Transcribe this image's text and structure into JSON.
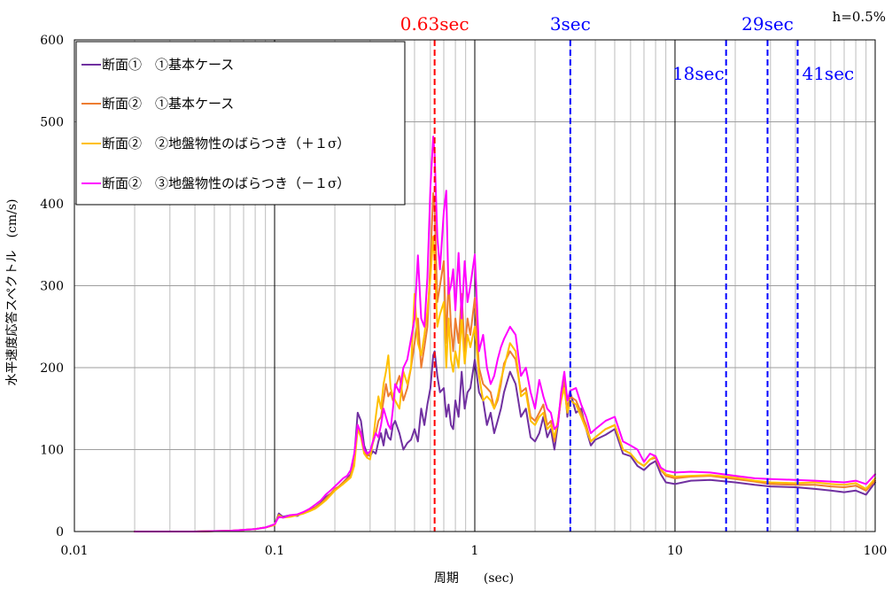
{
  "chart_data": {
    "type": "line",
    "xscale": "log",
    "xlim": [
      0.01,
      100
    ],
    "ylim": [
      0,
      600
    ],
    "xticks": [
      0.01,
      0.1,
      1,
      10,
      100
    ],
    "xtick_labels": [
      "0.01",
      "0.1",
      "1",
      "10",
      "100"
    ],
    "yticks": [
      0,
      100,
      200,
      300,
      400,
      500,
      600
    ],
    "ytick_labels": [
      "0",
      "100",
      "200",
      "300",
      "400",
      "500",
      "600"
    ],
    "xlabel": "周期　　(sec)",
    "ylabel": "水平速度応答スペクトル　(cm/s)",
    "damping_label": "h=0.5%",
    "grid": true,
    "legend_position": "top-left",
    "x": [
      0.02,
      0.03,
      0.04,
      0.05,
      0.06,
      0.07,
      0.08,
      0.09,
      0.1,
      0.105,
      0.11,
      0.12,
      0.13,
      0.14,
      0.15,
      0.16,
      0.17,
      0.18,
      0.19,
      0.2,
      0.21,
      0.22,
      0.23,
      0.24,
      0.25,
      0.26,
      0.27,
      0.28,
      0.29,
      0.3,
      0.31,
      0.32,
      0.33,
      0.34,
      0.35,
      0.36,
      0.37,
      0.38,
      0.39,
      0.4,
      0.42,
      0.44,
      0.46,
      0.48,
      0.5,
      0.52,
      0.54,
      0.56,
      0.58,
      0.6,
      0.62,
      0.63,
      0.65,
      0.67,
      0.7,
      0.72,
      0.74,
      0.76,
      0.78,
      0.8,
      0.83,
      0.86,
      0.89,
      0.92,
      0.95,
      1.0,
      1.05,
      1.1,
      1.15,
      1.2,
      1.25,
      1.3,
      1.35,
      1.4,
      1.5,
      1.6,
      1.7,
      1.8,
      1.9,
      2.0,
      2.1,
      2.2,
      2.3,
      2.4,
      2.5,
      2.6,
      2.7,
      2.8,
      2.9,
      3.0,
      3.2,
      3.4,
      3.6,
      3.8,
      4.0,
      4.5,
      5.0,
      5.5,
      6.0,
      6.5,
      7.0,
      7.5,
      8.0,
      8.5,
      9.0,
      10,
      12,
      15,
      20,
      25,
      30,
      40,
      50,
      60,
      70,
      80,
      90,
      100
    ],
    "series": [
      {
        "name": "断面①　①基本ケース",
        "color": "#7030A0",
        "values": [
          0,
          0,
          0,
          0.5,
          1,
          2,
          3,
          5,
          8,
          22,
          18,
          20,
          19,
          24,
          27,
          30,
          35,
          42,
          46,
          50,
          55,
          60,
          65,
          70,
          90,
          145,
          135,
          105,
          95,
          92,
          98,
          95,
          110,
          120,
          105,
          125,
          115,
          112,
          130,
          135,
          120,
          100,
          108,
          112,
          125,
          110,
          150,
          130,
          155,
          175,
          215,
          220,
          190,
          170,
          175,
          140,
          155,
          130,
          125,
          160,
          140,
          195,
          150,
          170,
          175,
          210,
          170,
          160,
          130,
          145,
          120,
          135,
          150,
          170,
          195,
          180,
          140,
          150,
          115,
          110,
          120,
          140,
          115,
          125,
          100,
          130,
          165,
          185,
          140,
          170,
          145,
          150,
          125,
          105,
          112,
          118,
          125,
          95,
          92,
          80,
          75,
          82,
          86,
          70,
          60,
          58,
          62,
          63,
          60,
          57,
          55,
          54,
          52,
          50,
          48,
          50,
          45,
          60
        ]
      },
      {
        "name": "断面②　①基本ケース",
        "color": "#ED7D31",
        "values": [
          0,
          0,
          0,
          0.5,
          1,
          2,
          3,
          5,
          8,
          20,
          17,
          19,
          20,
          23,
          26,
          30,
          34,
          40,
          46,
          52,
          55,
          60,
          64,
          68,
          85,
          130,
          120,
          100,
          92,
          95,
          108,
          120,
          135,
          140,
          160,
          180,
          165,
          170,
          160,
          175,
          190,
          160,
          175,
          200,
          230,
          260,
          200,
          225,
          250,
          330,
          413,
          395,
          280,
          300,
          330,
          230,
          310,
          250,
          220,
          260,
          230,
          290,
          220,
          260,
          240,
          285,
          200,
          180,
          175,
          170,
          150,
          160,
          180,
          205,
          220,
          210,
          170,
          175,
          140,
          135,
          145,
          155,
          130,
          135,
          110,
          135,
          165,
          185,
          150,
          165,
          160,
          145,
          130,
          110,
          115,
          125,
          130,
          100,
          95,
          85,
          80,
          88,
          90,
          75,
          68,
          65,
          67,
          68,
          64,
          61,
          58,
          57,
          57,
          55,
          54,
          56,
          50,
          62
        ]
      },
      {
        "name": "断面②　②地盤物性のばらつき（＋１σ）",
        "color": "#FFC000",
        "values": [
          0,
          0,
          0,
          0.5,
          1,
          2,
          3,
          5,
          8,
          20,
          17,
          18,
          20,
          22,
          25,
          28,
          33,
          38,
          44,
          50,
          54,
          58,
          62,
          66,
          80,
          125,
          115,
          95,
          90,
          88,
          110,
          140,
          165,
          150,
          180,
          195,
          215,
          175,
          165,
          160,
          150,
          195,
          180,
          200,
          290,
          230,
          215,
          240,
          270,
          310,
          360,
          330,
          250,
          265,
          280,
          200,
          260,
          210,
          195,
          220,
          200,
          260,
          205,
          240,
          225,
          250,
          190,
          160,
          165,
          160,
          150,
          165,
          185,
          200,
          230,
          220,
          165,
          170,
          135,
          130,
          140,
          145,
          125,
          130,
          115,
          135,
          160,
          175,
          145,
          160,
          155,
          140,
          125,
          110,
          115,
          125,
          130,
          100,
          95,
          85,
          80,
          88,
          92,
          76,
          70,
          67,
          68,
          69,
          66,
          62,
          60,
          59,
          60,
          58,
          57,
          59,
          52,
          65
        ]
      },
      {
        "name": "断面②　③地盤物性のばらつき（－１σ）",
        "color": "#FF00FF",
        "values": [
          0,
          0,
          0,
          0.5,
          1,
          2,
          3,
          5,
          9,
          18,
          17,
          20,
          21,
          24,
          28,
          33,
          38,
          45,
          50,
          55,
          60,
          65,
          68,
          75,
          95,
          130,
          120,
          100,
          95,
          98,
          110,
          120,
          115,
          130,
          150,
          140,
          130,
          125,
          150,
          180,
          170,
          200,
          210,
          235,
          260,
          337,
          260,
          250,
          310,
          420,
          482,
          460,
          360,
          320,
          390,
          416,
          290,
          300,
          320,
          270,
          340,
          260,
          330,
          280,
          300,
          338,
          220,
          240,
          200,
          180,
          190,
          210,
          225,
          235,
          250,
          240,
          190,
          200,
          170,
          150,
          185,
          165,
          150,
          145,
          125,
          130,
          170,
          195,
          160,
          172,
          175,
          155,
          140,
          120,
          125,
          135,
          140,
          110,
          105,
          100,
          85,
          95,
          92,
          78,
          74,
          72,
          73,
          72,
          68,
          65,
          64,
          63,
          62,
          61,
          60,
          62,
          58,
          70
        ]
      }
    ],
    "reference_lines": [
      {
        "x": 0.63,
        "label": "0.63sec",
        "color": "#FF0000",
        "style": "dashed",
        "label_position": "top"
      },
      {
        "x": 3,
        "label": "3sec",
        "color": "#0000FF",
        "style": "dashed",
        "label_position": "top"
      },
      {
        "x": 18,
        "label": "18sec",
        "color": "#0000FF",
        "style": "dashed",
        "label_position": "inside-left"
      },
      {
        "x": 29,
        "label": "29sec",
        "color": "#0000FF",
        "style": "dashed",
        "label_position": "top"
      },
      {
        "x": 41,
        "label": "41sec",
        "color": "#0000FF",
        "style": "dashed",
        "label_position": "inside-right"
      }
    ]
  }
}
